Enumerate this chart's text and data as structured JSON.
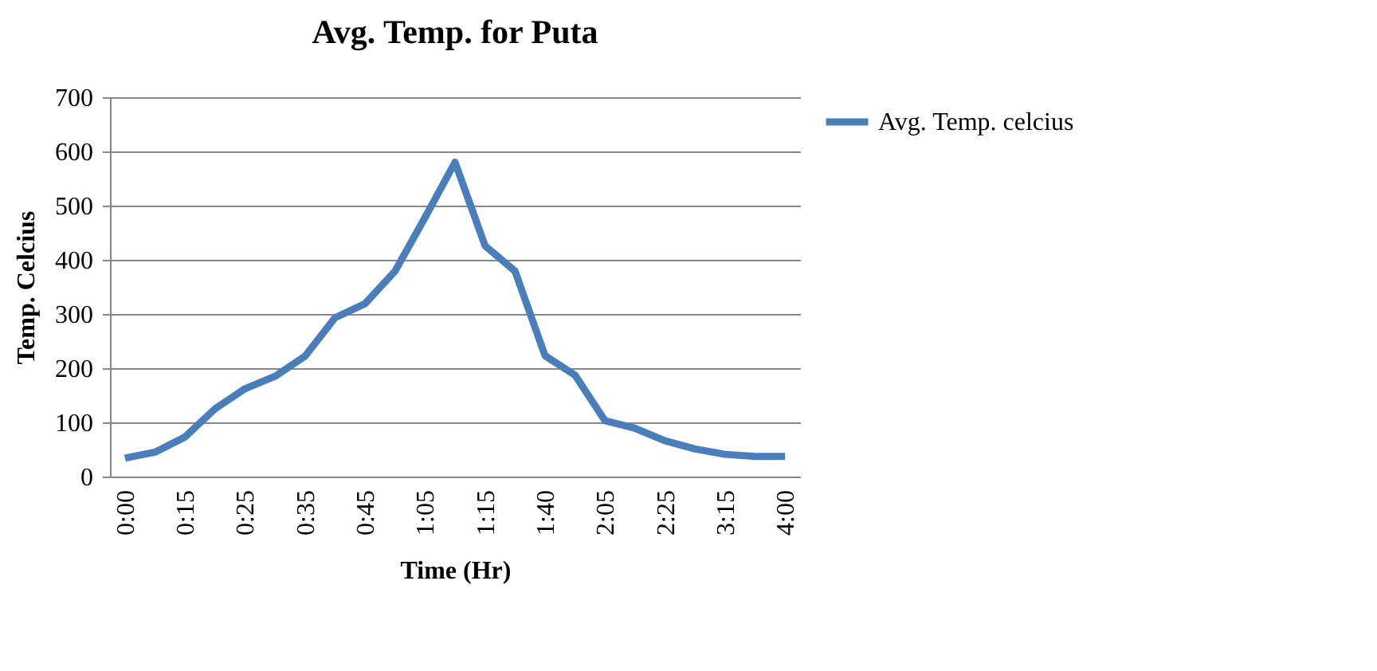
{
  "chart_data": {
    "type": "line",
    "title": "Avg. Temp. for Puta",
    "xlabel": "Time (Hr)",
    "ylabel": "Temp. Celcius",
    "categories": [
      "0:00",
      null,
      "0:15",
      null,
      "0:25",
      null,
      "0:35",
      null,
      "0:45",
      null,
      "1:05",
      null,
      "1:15",
      null,
      "1:40",
      null,
      "2:05",
      null,
      "2:25",
      null,
      "3:15",
      null,
      "4:00"
    ],
    "series": [
      {
        "name": "Avg. Temp. celcius",
        "color": "#4a7ebb",
        "values": [
          34,
          45,
          73,
          125,
          162,
          185,
          222,
          293,
          319,
          379,
          478,
          580,
          426,
          379,
          223,
          187,
          103,
          89,
          66,
          51,
          41,
          37,
          37
        ]
      }
    ],
    "ylim": [
      0,
      700
    ],
    "yticks": [
      0,
      100,
      200,
      300,
      400,
      500,
      600,
      700
    ],
    "grid": "y",
    "legend": "right",
    "marker": "none",
    "line_style": "solid"
  }
}
